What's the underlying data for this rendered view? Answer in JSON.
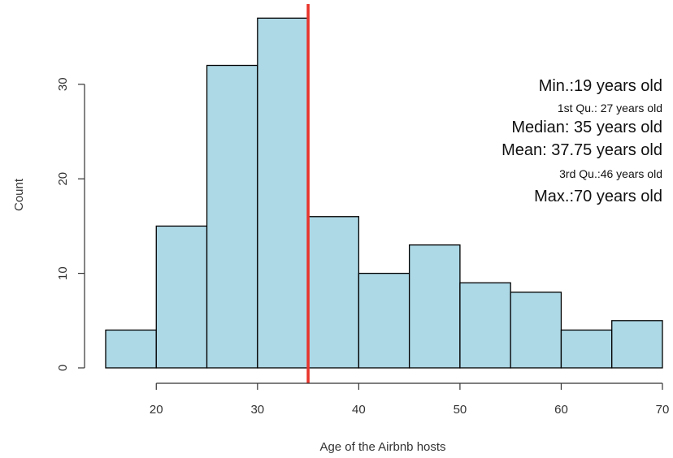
{
  "chart_data": {
    "type": "bar",
    "subtype": "histogram",
    "title": "",
    "xlabel": "Age of the Airbnb hosts",
    "ylabel": "Count",
    "bins": [
      {
        "start": 15,
        "end": 20,
        "count": 4
      },
      {
        "start": 20,
        "end": 25,
        "count": 15
      },
      {
        "start": 25,
        "end": 30,
        "count": 32
      },
      {
        "start": 30,
        "end": 35,
        "count": 37
      },
      {
        "start": 35,
        "end": 40,
        "count": 16
      },
      {
        "start": 40,
        "end": 45,
        "count": 10
      },
      {
        "start": 45,
        "end": 50,
        "count": 13
      },
      {
        "start": 50,
        "end": 55,
        "count": 9
      },
      {
        "start": 55,
        "end": 60,
        "count": 8
      },
      {
        "start": 60,
        "end": 65,
        "count": 4
      },
      {
        "start": 65,
        "end": 70,
        "count": 5
      }
    ],
    "xlim": [
      15,
      70
    ],
    "ylim": [
      0,
      38
    ],
    "x_ticks": [
      20,
      30,
      40,
      50,
      60,
      70
    ],
    "y_ticks": [
      0,
      10,
      20,
      30
    ],
    "grid": false,
    "bar_color": "#add8e6",
    "bar_edge_color": "#000000",
    "reference_line": {
      "x": 35,
      "color": "#e8332a"
    },
    "annotations": [
      {
        "text": "Min.:19 years old",
        "size": "large"
      },
      {
        "text": "1st Qu.: 27 years old",
        "size": "small"
      },
      {
        "text": "Median: 35 years old",
        "size": "large"
      },
      {
        "text": "Mean: 37.75  years old",
        "size": "large"
      },
      {
        "text": "3rd Qu.:46 years old",
        "size": "small"
      },
      {
        "text": "Max.:70 years old",
        "size": "large"
      }
    ]
  }
}
